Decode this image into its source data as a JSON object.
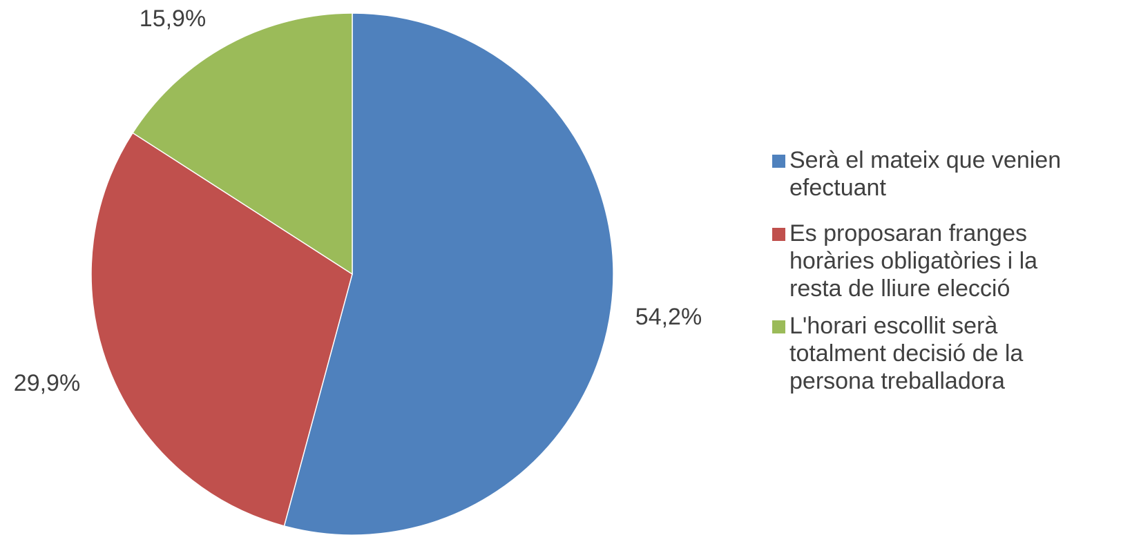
{
  "chart_data": {
    "type": "pie",
    "slices": [
      {
        "label": "Serà el mateix que venien\nefectuant",
        "value": 54.2,
        "value_label": "54,2%",
        "color": "#4F81BD"
      },
      {
        "label": "Es proposaran franges\nhoràries obligatòries i la\nresta de lliure elecció",
        "value": 29.9,
        "value_label": "29,9%",
        "color": "#C0504D"
      },
      {
        "label": "L'horari escollit serà\ntotalment decisió de la\npersona treballadora",
        "value": 15.9,
        "value_label": "15,9%",
        "color": "#9BBB59"
      }
    ],
    "start_angle": "top",
    "direction": "clockwise",
    "legend_position": "right"
  }
}
